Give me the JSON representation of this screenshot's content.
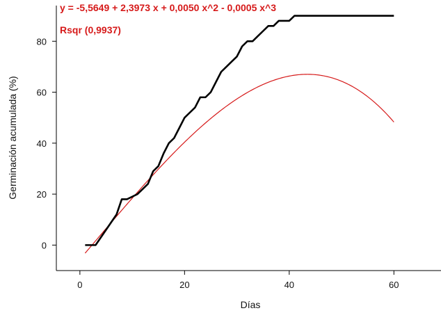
{
  "chart_data": {
    "type": "line",
    "xlabel": "Días",
    "ylabel": "Germinación acumulada (%)",
    "xlim": [
      -4.5,
      69
    ],
    "ylim": [
      -10,
      94
    ],
    "xticks": [
      0,
      20,
      40,
      60
    ],
    "yticks": [
      0,
      20,
      40,
      60,
      80
    ],
    "xtick_labels": [
      "0",
      "20",
      "40",
      "60"
    ],
    "ytick_labels": [
      "0",
      "20",
      "40",
      "60",
      "80"
    ],
    "annotations": [
      {
        "text": "y = -5,5649 + 2,3973 x + 0,0050 x^2 - 0,0005 x^3",
        "color": "#d61a1a"
      },
      {
        "text": "Rsqr (0,9937)",
        "color": "#d61a1a"
      }
    ],
    "series": [
      {
        "color": "#000000",
        "x": [
          1,
          3,
          4,
          5,
          6,
          7,
          8,
          9,
          10,
          11,
          12,
          13,
          14,
          15,
          16,
          17,
          18,
          19,
          20,
          21,
          22,
          23,
          24,
          25,
          26,
          27,
          28,
          29,
          30,
          31,
          32,
          33,
          34,
          35,
          36,
          37,
          38,
          39,
          40,
          41,
          60
        ],
        "y": [
          0,
          0,
          3,
          6,
          9,
          12,
          18,
          18,
          19,
          20,
          22,
          24,
          29,
          31,
          36,
          40,
          42,
          46,
          50,
          52,
          54,
          58,
          58,
          60,
          64,
          68,
          70,
          72,
          74,
          78,
          80,
          80,
          82,
          84,
          86,
          86,
          88,
          88,
          88,
          90,
          90
        ]
      },
      {
        "color": "#d61a1a",
        "fit": {
          "type": "cubic",
          "coefficients": [
            -5.5649,
            2.3973,
            0.005,
            -0.0005
          ],
          "x_range": [
            1,
            60
          ]
        }
      }
    ]
  }
}
